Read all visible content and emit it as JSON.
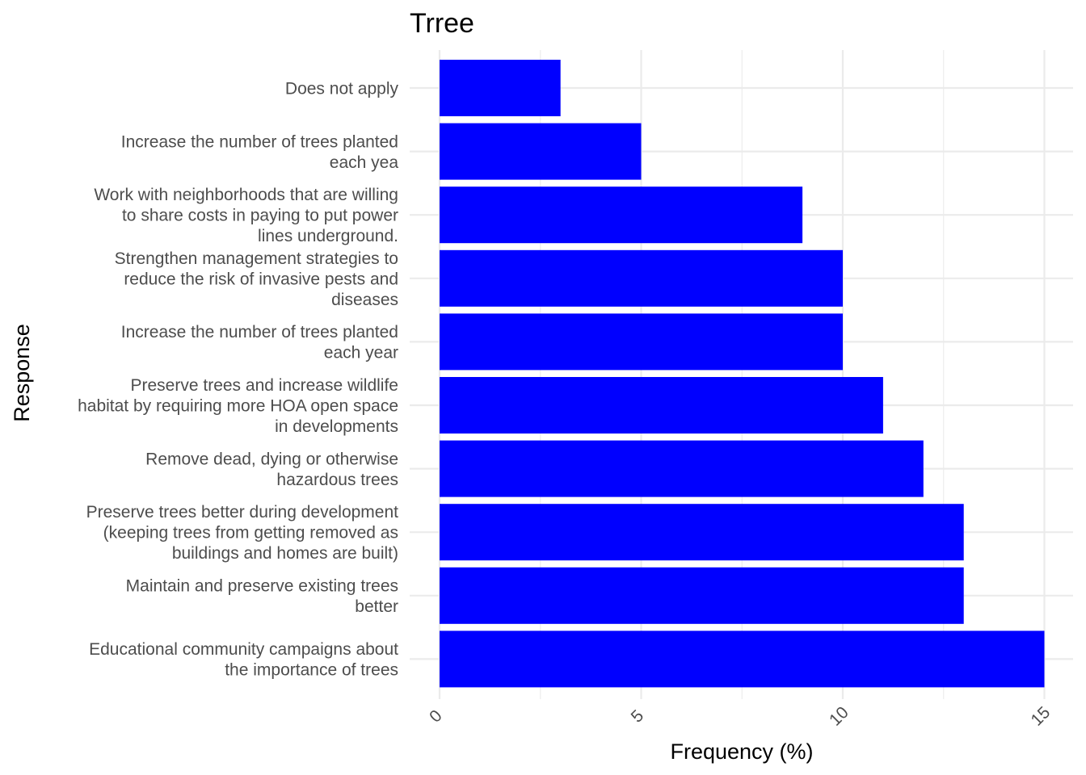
{
  "chart_data": {
    "type": "bar",
    "orientation": "horizontal",
    "title": "Trree",
    "xlabel": "Frequency (%)",
    "ylabel": "Response",
    "xlim": [
      0,
      15.5
    ],
    "x_ticks": [
      0,
      5,
      10,
      15
    ],
    "tick_label_rotation": "45deg",
    "grid": true,
    "legend": "none",
    "bar_color": "#0000ff",
    "categories": [
      [
        "Does not apply"
      ],
      [
        "Increase the number of trees planted",
        "each yea"
      ],
      [
        "Work with neighborhoods that are willing",
        "to share costs in paying to put power",
        "lines underground."
      ],
      [
        "Strengthen management strategies to",
        "reduce the risk of invasive pests and",
        "diseases"
      ],
      [
        "Increase the number of trees planted",
        "each year"
      ],
      [
        "Preserve trees and increase wildlife",
        "habitat by requiring more HOA open space",
        "in developments"
      ],
      [
        "Remove dead, dying or otherwise",
        "hazardous trees"
      ],
      [
        "Preserve trees better during development",
        "(keeping trees from getting removed as",
        "buildings and homes are built)"
      ],
      [
        "Maintain and preserve existing trees",
        "better"
      ],
      [
        "Educational community campaigns about",
        "the importance of trees"
      ]
    ],
    "values": [
      3,
      5,
      9,
      10,
      10,
      11,
      12,
      13,
      13,
      15
    ]
  }
}
